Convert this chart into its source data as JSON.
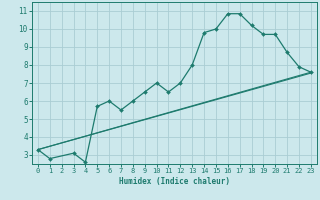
{
  "xlabel": "Humidex (Indice chaleur)",
  "xlim": [
    -0.5,
    23.5
  ],
  "ylim": [
    2.5,
    11.5
  ],
  "xticks": [
    0,
    1,
    2,
    3,
    4,
    5,
    6,
    7,
    8,
    9,
    10,
    11,
    12,
    13,
    14,
    15,
    16,
    17,
    18,
    19,
    20,
    21,
    22,
    23
  ],
  "yticks": [
    3,
    4,
    5,
    6,
    7,
    8,
    9,
    10,
    11
  ],
  "bg_color": "#cce8ec",
  "line_color": "#1e7b6e",
  "grid_color": "#aacdd4",
  "line1_x": [
    0,
    1,
    3,
    4,
    5,
    6,
    7,
    8,
    9,
    10,
    11,
    12,
    13,
    14,
    15,
    16,
    17,
    18,
    19,
    20,
    21,
    22,
    23
  ],
  "line1_y": [
    3.3,
    2.8,
    3.1,
    2.6,
    5.7,
    6.0,
    5.5,
    6.0,
    6.5,
    7.0,
    6.5,
    7.0,
    8.0,
    9.8,
    10.0,
    10.85,
    10.85,
    10.2,
    9.7,
    9.7,
    8.7,
    7.9,
    7.6
  ],
  "line2_x": [
    0,
    23
  ],
  "line2_y": [
    3.3,
    7.6
  ],
  "line3_x": [
    0,
    23
  ],
  "line3_y": [
    3.3,
    7.55
  ],
  "lw_main": 0.9,
  "lw_ref": 0.8,
  "marker_size": 2.0
}
